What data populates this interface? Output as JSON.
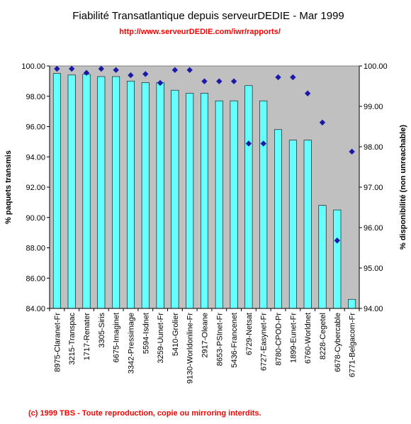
{
  "chart_data": {
    "type": "bar",
    "title": "Fiabilité Transatlantique depuis serveurDEDIE - Mar 1999",
    "subtitle": "http://www.serveurDEDIE.com/iwr/rapports/",
    "footer": "(c) 1999 TBS - Toute reproduction, copie ou mirroring interdits.",
    "ylabel": "% paquets transmis",
    "y2label": "% disponibilité (non unreachable)",
    "ylim": [
      84,
      100
    ],
    "y2lim": [
      94,
      100
    ],
    "yticks": [
      "84.00",
      "86.00",
      "88.00",
      "90.00",
      "92.00",
      "94.00",
      "96.00",
      "98.00",
      "100.00"
    ],
    "y2ticks": [
      "94.00",
      "95.00",
      "96.00",
      "97.00",
      "98.00",
      "99.00",
      "100.00"
    ],
    "categories": [
      "8975-Claranet-Fr",
      "3215-Transpac",
      "1717-Renater",
      "3305-Siris",
      "6675-Imaginet",
      "3342-Pressimage",
      "5594-Isdnet",
      "3259-Uunet-Fr",
      "5410-Grolier",
      "9130-Worldonline-Fr",
      "2917-Oleane",
      "8653-PSInet-Fr",
      "5436-Francenet",
      "6729-Netsat",
      "6727-Easynet-Fr",
      "8780-CPOD-Pr",
      "1899-Eunet-Fr",
      "6760-Worldnet",
      "8228-Cegetel",
      "6678-Cybercable",
      "6771-Belgacom-Fr"
    ],
    "series": [
      {
        "type": "bar",
        "axis": "left",
        "color": "#66ffff",
        "values": [
          99.5,
          99.4,
          99.45,
          99.3,
          99.3,
          99.0,
          98.9,
          98.9,
          98.4,
          98.2,
          98.2,
          97.7,
          97.7,
          98.7,
          97.7,
          95.8,
          95.1,
          95.1,
          90.8,
          90.5,
          84.6
        ]
      },
      {
        "type": "scatter",
        "axis": "right",
        "color": "#1a1aa6",
        "marker": "diamond",
        "values": [
          99.93,
          99.93,
          99.83,
          99.93,
          99.9,
          99.77,
          99.8,
          99.58,
          99.9,
          99.9,
          99.62,
          99.62,
          99.62,
          98.08,
          98.08,
          99.72,
          99.72,
          99.32,
          98.6,
          95.68,
          97.88
        ]
      }
    ],
    "grid": false,
    "plot_background": "#c0c0c0"
  }
}
